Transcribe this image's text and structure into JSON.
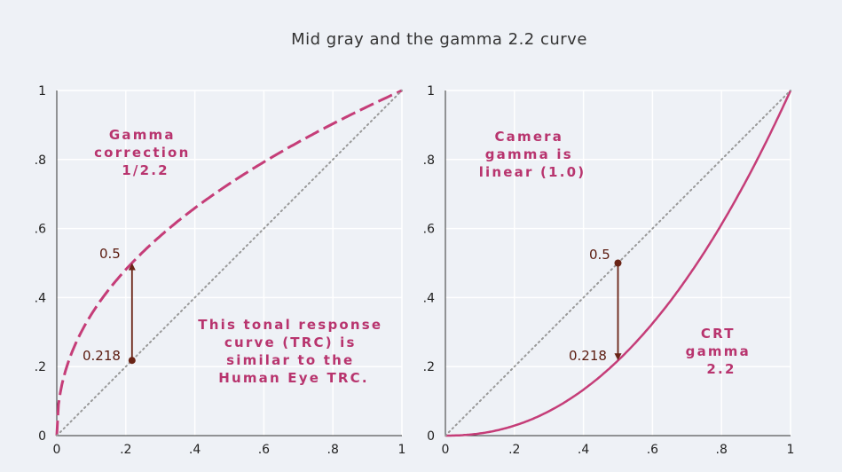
{
  "figure_title": "Mid gray and the gamma 2.2 curve",
  "colors": {
    "background": "#eef1f6",
    "curve": "#c53d78",
    "diagonal": "#999999",
    "arrow": "#6a2416",
    "annotation": "#b8346e",
    "grid": "#ffffff"
  },
  "chart_data": [
    {
      "type": "line",
      "title": "",
      "xlim": [
        0,
        1
      ],
      "ylim": [
        0,
        1
      ],
      "x_ticks": [
        "0",
        ".2",
        ".4",
        ".6",
        ".8",
        "1"
      ],
      "y_ticks": [
        "0",
        ".2",
        ".4",
        ".6",
        ".8",
        "1"
      ],
      "grid": true,
      "series": [
        {
          "style": "dashed",
          "function": "y = x^(1/2.2)",
          "x": [
            0,
            0.05,
            0.1,
            0.2,
            0.218,
            0.3,
            0.4,
            0.5,
            0.6,
            0.7,
            0.8,
            0.9,
            1
          ],
          "y": [
            0,
            0.256,
            0.351,
            0.481,
            0.5,
            0.579,
            0.659,
            0.73,
            0.793,
            0.85,
            0.904,
            0.953,
            1
          ]
        },
        {
          "style": "dotted",
          "function": "y = x",
          "x": [
            0,
            1
          ],
          "y": [
            0,
            1
          ]
        }
      ],
      "markers": [
        {
          "x": 0.218,
          "y": 0.218,
          "label": "0.218"
        }
      ],
      "arrow": {
        "from": [
          0.218,
          0.218
        ],
        "to": [
          0.218,
          0.5
        ]
      },
      "point_labels": [
        {
          "x": 0.218,
          "y": 0.5,
          "text": "0.5"
        }
      ],
      "annotations": [
        {
          "lines": [
            "Gamma",
            "correction",
            "1/2.2"
          ]
        },
        {
          "lines": [
            "This tonal response",
            "curve (TRC) is",
            "similar to the",
            "Human Eye TRC."
          ]
        }
      ]
    },
    {
      "type": "line",
      "title": "",
      "xlim": [
        0,
        1
      ],
      "ylim": [
        0,
        1
      ],
      "x_ticks": [
        "0",
        ".2",
        ".4",
        ".6",
        ".8",
        "1"
      ],
      "y_ticks": [
        "0",
        ".2",
        ".4",
        ".6",
        ".8",
        "1"
      ],
      "grid": true,
      "series": [
        {
          "style": "solid",
          "function": "y = x^2.2",
          "x": [
            0,
            0.1,
            0.2,
            0.3,
            0.4,
            0.5,
            0.6,
            0.7,
            0.8,
            0.9,
            1
          ],
          "y": [
            0,
            0.006,
            0.029,
            0.071,
            0.133,
            0.218,
            0.325,
            0.456,
            0.612,
            0.793,
            1
          ]
        },
        {
          "style": "dotted",
          "function": "y = x",
          "x": [
            0,
            1
          ],
          "y": [
            0,
            1
          ]
        }
      ],
      "markers": [
        {
          "x": 0.5,
          "y": 0.5,
          "label": "0.5"
        }
      ],
      "arrow": {
        "from": [
          0.5,
          0.5
        ],
        "to": [
          0.5,
          0.218
        ]
      },
      "point_labels": [
        {
          "x": 0.5,
          "y": 0.218,
          "text": "0.218"
        }
      ],
      "annotations": [
        {
          "lines": [
            "Camera",
            "gamma is",
            "linear (1.0)"
          ]
        },
        {
          "lines": [
            "CRT",
            "gamma",
            "2.2"
          ]
        }
      ]
    }
  ]
}
